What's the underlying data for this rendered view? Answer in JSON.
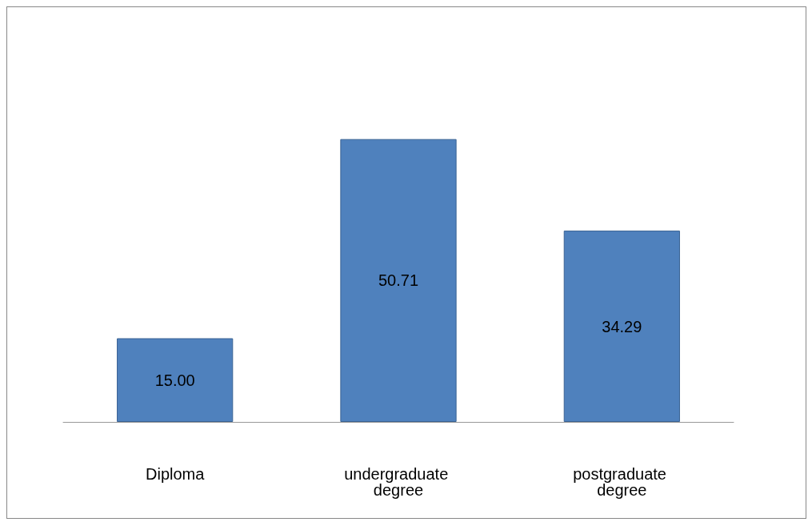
{
  "chart_data": {
    "type": "bar",
    "categories": [
      "Diploma",
      "undergraduate degree",
      "postgraduate degree"
    ],
    "values": [
      15.0,
      50.71,
      34.29
    ],
    "value_labels": [
      "15.00",
      "50.71",
      "34.29"
    ],
    "color": "#4f81bd"
  }
}
